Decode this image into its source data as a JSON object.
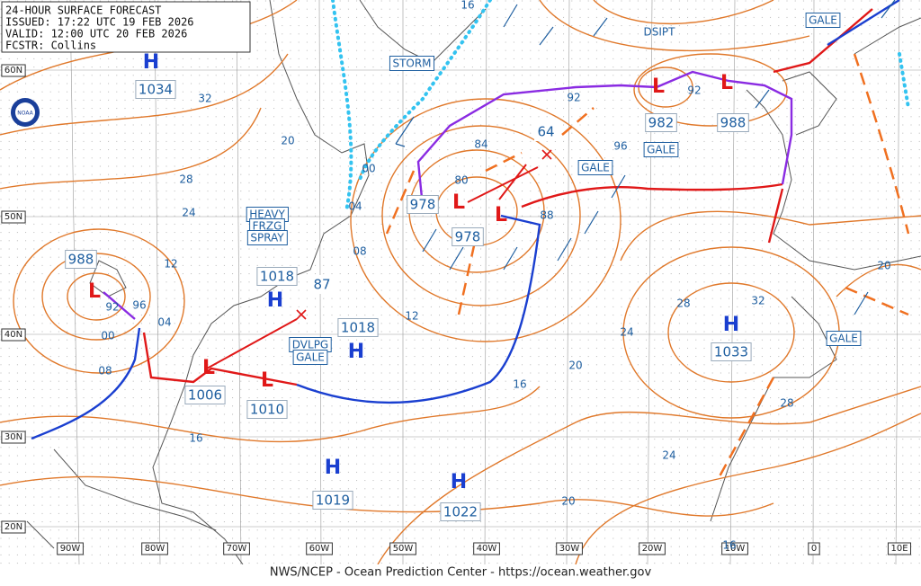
{
  "header": {
    "lines": [
      "24-HOUR SURFACE FORECAST",
      "ISSUED: 17:22 UTC 19 FEB 2026",
      "VALID: 12:00 UTC 20 FEB 2026",
      "FCSTR: Collins"
    ]
  },
  "logo": "NOAA",
  "latitude_labels": [
    "60N",
    "50N",
    "40N",
    "30N",
    "20N"
  ],
  "longitude_labels": [
    "90W",
    "80W",
    "70W",
    "60W",
    "50W",
    "40W",
    "30W",
    "20W",
    "10W",
    "0",
    "10E"
  ],
  "pressure_systems": [
    {
      "symbol": "H",
      "pressure": "1034"
    },
    {
      "symbol": "L",
      "pressure": "988"
    },
    {
      "symbol": "H",
      "pressure": "1018"
    },
    {
      "symbol": "H",
      "pressure": "1018"
    },
    {
      "symbol": "L",
      "pressure": "1006"
    },
    {
      "symbol": "L",
      "pressure": "1010"
    },
    {
      "symbol": "H",
      "pressure": "1019"
    },
    {
      "symbol": "H",
      "pressure": "1022"
    },
    {
      "symbol": "H",
      "pressure": "1033"
    },
    {
      "symbol": "L",
      "pressure": "978"
    },
    {
      "symbol": "L",
      "pressure": "978"
    },
    {
      "symbol": "L",
      "pressure": "982"
    },
    {
      "symbol": "L",
      "pressure": "988"
    }
  ],
  "warnings": [
    "STORM",
    "GALE",
    "GALE",
    "GALE",
    "GALE",
    "DSIPT"
  ],
  "spray_warning": [
    "HEAVY",
    "FRZG",
    "SPRAY"
  ],
  "developing_warning": [
    "DVLPG",
    "GALE"
  ],
  "isobar_labels": [
    "32",
    "20",
    "28",
    "24",
    "12",
    "92",
    "96",
    "04",
    "00",
    "08",
    "16",
    "00",
    "04",
    "08",
    "12",
    "84",
    "80",
    "88",
    "92",
    "96",
    "92",
    "24",
    "20",
    "16",
    "20",
    "24",
    "28",
    "32",
    "28",
    "20",
    "16",
    "16",
    "87",
    "64"
  ],
  "footer": "NWS/NCEP - Ocean Prediction Center - https://ocean.weather.gov"
}
